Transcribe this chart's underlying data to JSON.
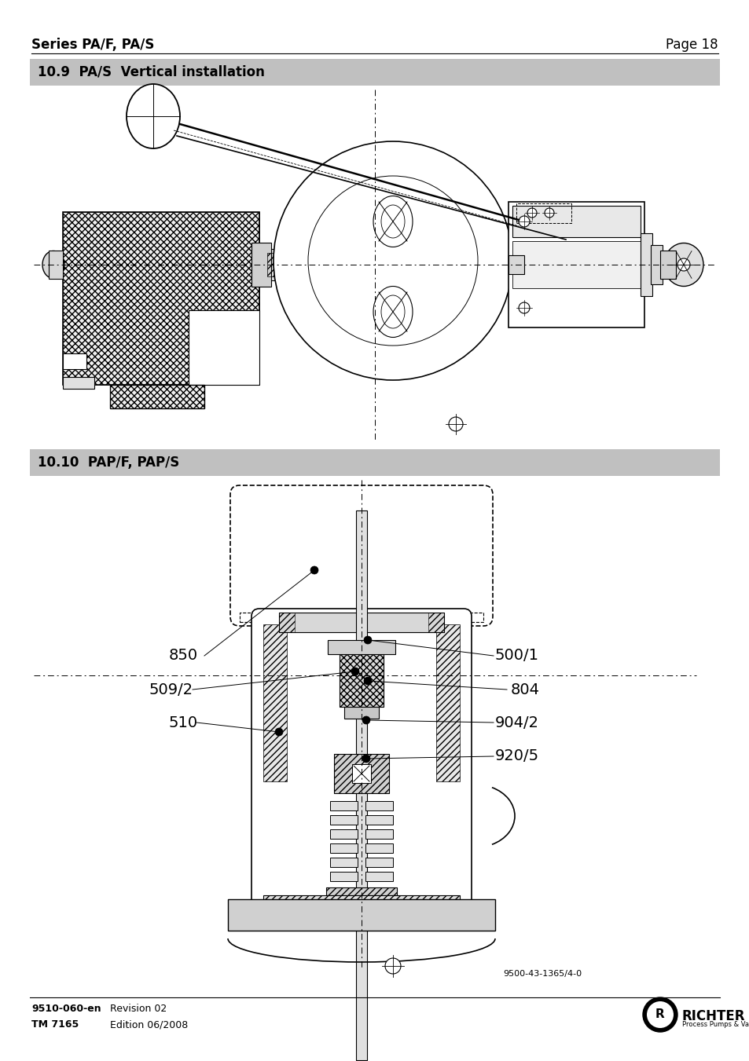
{
  "page_title_left": "Series PA/F, PA/S",
  "page_title_right": "Page 18",
  "section1_title": "10.9  PA/S  Vertical installation",
  "section2_title": "10.10  PAP/F, PAP/S",
  "footer_left_bold": "9510-060-en",
  "footer_left_line1": "Revision 02",
  "footer_left_line2_bold": "TM 7165",
  "footer_left_line2": "Edition 06/2008",
  "bg_color": "#ffffff",
  "section_bg": "#c0c0c0",
  "diagram2_ref": "9500-43-1365/4-0",
  "title_fontsize": 12,
  "section_fontsize": 12,
  "label_fontsize": 14
}
